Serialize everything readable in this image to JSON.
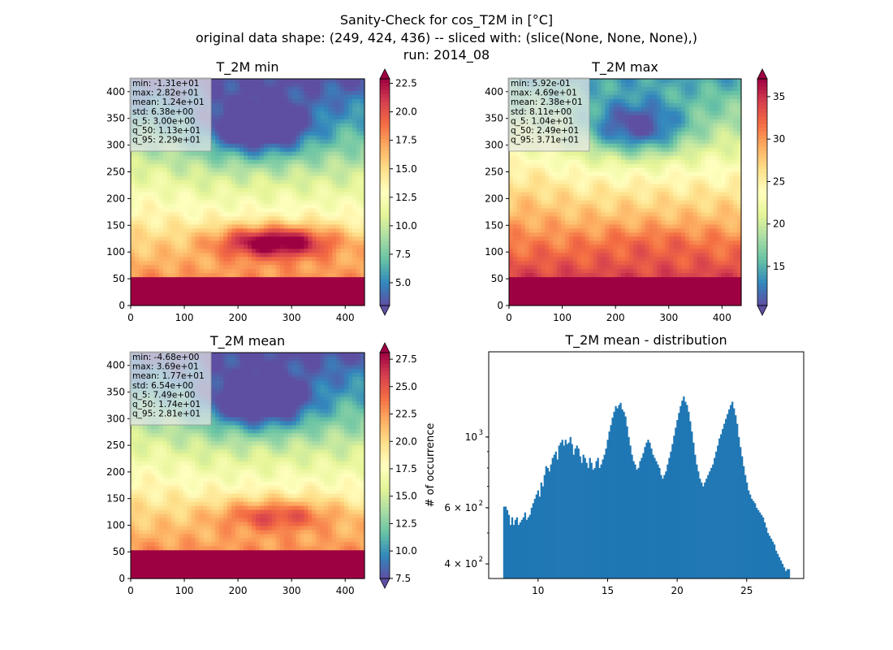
{
  "suptitle": [
    "Sanity-Check for cos_T2M in [°C]",
    "original data shape: (249, 424, 436) -- sliced with: (slice(None, None, None),)",
    "run: 2014_08"
  ],
  "colors": {
    "axis": "#000000",
    "hist": "#1f77b4",
    "stats_box": "#e8e8e8"
  },
  "colormap": "Spectral_r",
  "chart_data": [
    {
      "type": "heatmap",
      "title": "T_2M min",
      "xlim": [
        0,
        436
      ],
      "ylim": [
        0,
        424
      ],
      "xticks": [
        0,
        100,
        200,
        300,
        400
      ],
      "yticks": [
        0,
        50,
        100,
        150,
        200,
        250,
        300,
        350,
        400
      ],
      "colorbar": {
        "range": [
          3.0,
          22.9
        ],
        "ticks": [
          "5.0",
          "7.5",
          "10.0",
          "12.5",
          "15.0",
          "17.5",
          "20.0",
          "22.5"
        ],
        "extend": "both"
      },
      "stats": [
        "min: -1.31e+01",
        "max: 2.82e+01",
        "mean: 1.24e+01",
        "std: 6.38e+00",
        "q_5: 3.00e+00",
        "q_50: 1.13e+01",
        "q_95: 2.29e+01"
      ]
    },
    {
      "type": "heatmap",
      "title": "T_2M max",
      "xlim": [
        0,
        436
      ],
      "ylim": [
        0,
        424
      ],
      "xticks": [
        0,
        100,
        200,
        300,
        400
      ],
      "yticks": [
        0,
        50,
        100,
        150,
        200,
        250,
        300,
        350,
        400
      ],
      "colorbar": {
        "range": [
          10.4,
          37.1
        ],
        "ticks": [
          "15",
          "20",
          "25",
          "30",
          "35"
        ],
        "extend": "both"
      },
      "stats": [
        "min: 5.92e-01",
        "max: 4.69e+01",
        "mean: 2.38e+01",
        "std: 8.11e+00",
        "q_5: 1.04e+01",
        "q_50: 2.49e+01",
        "q_95: 3.71e+01"
      ]
    },
    {
      "type": "heatmap",
      "title": "T_2M mean",
      "xlim": [
        0,
        436
      ],
      "ylim": [
        0,
        424
      ],
      "xticks": [
        0,
        100,
        200,
        300,
        400
      ],
      "yticks": [
        0,
        50,
        100,
        150,
        200,
        250,
        300,
        350,
        400
      ],
      "colorbar": {
        "range": [
          7.49,
          28.1
        ],
        "ticks": [
          "7.5",
          "10.0",
          "12.5",
          "15.0",
          "17.5",
          "20.0",
          "22.5",
          "25.0",
          "27.5"
        ],
        "extend": "both"
      },
      "stats": [
        "min: -4.68e+00",
        "max: 3.69e+01",
        "mean: 1.77e+01",
        "std: 6.54e+00",
        "q_5: 7.49e+00",
        "q_50: 1.74e+01",
        "q_95: 2.81e+01"
      ]
    },
    {
      "type": "bar",
      "title": "T_2M mean - distribution",
      "ylabel": "# of occurrence",
      "xlim": [
        6.45,
        29.1
      ],
      "ylim": [
        360,
        1850
      ],
      "yscale": "log",
      "xticks": [
        10,
        15,
        20,
        25
      ],
      "yticks_major": [
        {
          "value": 400,
          "label": "4 × 10",
          "exp": "2"
        },
        {
          "value": 600,
          "label": "6 × 10",
          "exp": "2"
        },
        {
          "value": 1000,
          "label": "10",
          "exp": "3"
        }
      ],
      "bin_range": [
        7.49,
        28.1
      ],
      "counts": [
        605,
        605,
        590,
        570,
        530,
        560,
        530,
        550,
        560,
        530,
        540,
        550,
        560,
        580,
        550,
        560,
        570,
        600,
        620,
        640,
        660,
        680,
        650,
        720,
        700,
        760,
        810,
        800,
        780,
        820,
        860,
        880,
        900,
        850,
        940,
        960,
        980,
        940,
        980,
        950,
        960,
        1000,
        950,
        880,
        920,
        940,
        920,
        870,
        830,
        880,
        860,
        830,
        800,
        860,
        830,
        790,
        800,
        840,
        860,
        800,
        820,
        850,
        880,
        920,
        980,
        1040,
        1090,
        1150,
        1200,
        1250,
        1230,
        1260,
        1280,
        1220,
        1200,
        1160,
        1080,
        1000,
        940,
        880,
        840,
        820,
        790,
        800,
        840,
        860,
        890,
        930,
        960,
        980,
        960,
        920,
        880,
        860,
        840,
        820,
        800,
        760,
        740,
        760,
        780,
        820,
        860,
        900,
        950,
        1010,
        1070,
        1130,
        1190,
        1250,
        1300,
        1340,
        1290,
        1260,
        1200,
        1120,
        1040,
        960,
        880,
        820,
        780,
        740,
        720,
        700,
        720,
        740,
        760,
        780,
        800,
        820,
        860,
        900,
        940,
        990,
        1020,
        1060,
        1100,
        1140,
        1180,
        1220,
        1260,
        1290,
        1230,
        1170,
        1100,
        1000,
        930,
        870,
        810,
        760,
        720,
        680,
        660,
        640,
        630,
        620,
        600,
        590,
        580,
        570,
        560,
        540,
        520,
        500,
        490,
        480,
        470,
        460,
        440,
        430,
        420,
        410,
        400,
        390,
        380,
        385,
        385
      ]
    }
  ]
}
